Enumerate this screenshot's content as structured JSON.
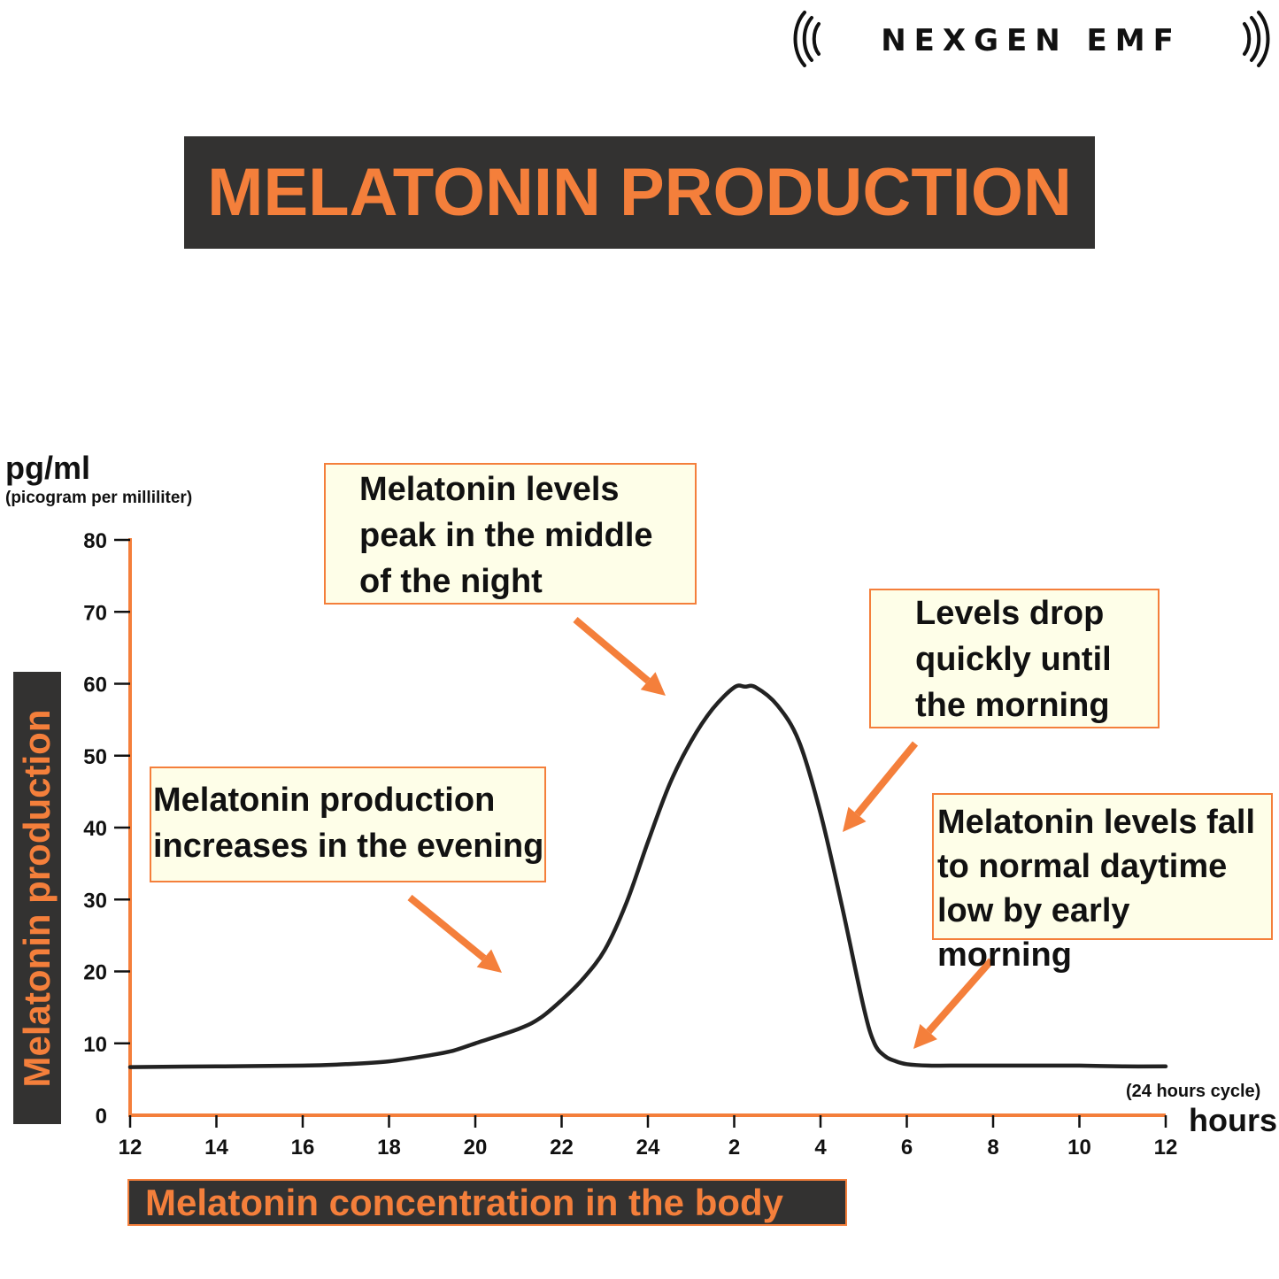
{
  "brand": {
    "logo_text": "NEXGEN EMF"
  },
  "title": "MELATONIN PRODUCTION",
  "y_units": {
    "main": "pg/ml",
    "sub": "(picogram per milliliter)"
  },
  "y_axis_label": "Melatonin production",
  "x_units": {
    "cycle": "(24 hours cycle)",
    "hours": "hours"
  },
  "bottom_label": "Melatonin concentration in the body",
  "colors": {
    "accent": "#f47f3b",
    "dark": "#333231",
    "note_bg": "#fefee8",
    "curve": "#222222"
  },
  "annotations": [
    {
      "lines": [
        "Melatonin levels",
        "peak in the middle",
        "of the night"
      ]
    },
    {
      "lines": [
        "Levels drop",
        "quickly until",
        "the morning"
      ]
    },
    {
      "lines": [
        "Melatonin production",
        "increases in the evening"
      ]
    },
    {
      "lines": [
        "Melatonin levels fall",
        "to normal daytime",
        "low by early morning"
      ]
    }
  ],
  "chart_data": {
    "type": "line",
    "title": "MELATONIN PRODUCTION",
    "xlabel": "hours",
    "ylabel": "Melatonin production (pg/ml)",
    "ylim": [
      0,
      80
    ],
    "y_ticks": [
      0,
      10,
      20,
      30,
      40,
      50,
      60,
      70,
      80
    ],
    "x_tick_labels": [
      "12",
      "14",
      "16",
      "18",
      "20",
      "22",
      "24",
      "2",
      "4",
      "6",
      "8",
      "10",
      "12"
    ],
    "x_elapsed_hours_range": [
      0,
      24
    ],
    "grid": false,
    "series": [
      {
        "name": "Melatonin concentration",
        "x_elapsed_hours": [
          0,
          2,
          4,
          5,
          6,
          7,
          7.5,
          8,
          9,
          9.5,
          10,
          10.5,
          11,
          11.5,
          12,
          12.5,
          13,
          13.5,
          14,
          14.25,
          14.5,
          15,
          15.5,
          16,
          16.5,
          17,
          17.25,
          17.5,
          17.75,
          18,
          18.5,
          19,
          20,
          21,
          22,
          23,
          24
        ],
        "values": [
          6.7,
          6.8,
          6.9,
          7.1,
          7.5,
          8.4,
          9.0,
          10.0,
          12.0,
          13.5,
          16.0,
          19.0,
          23.0,
          29.5,
          38.0,
          46.0,
          52.0,
          56.5,
          59.5,
          59.6,
          59.5,
          57.0,
          52.0,
          42.0,
          29.0,
          15.0,
          10.0,
          8.2,
          7.5,
          7.1,
          6.9,
          6.9,
          6.9,
          6.9,
          6.9,
          6.8,
          6.8
        ]
      }
    ]
  }
}
